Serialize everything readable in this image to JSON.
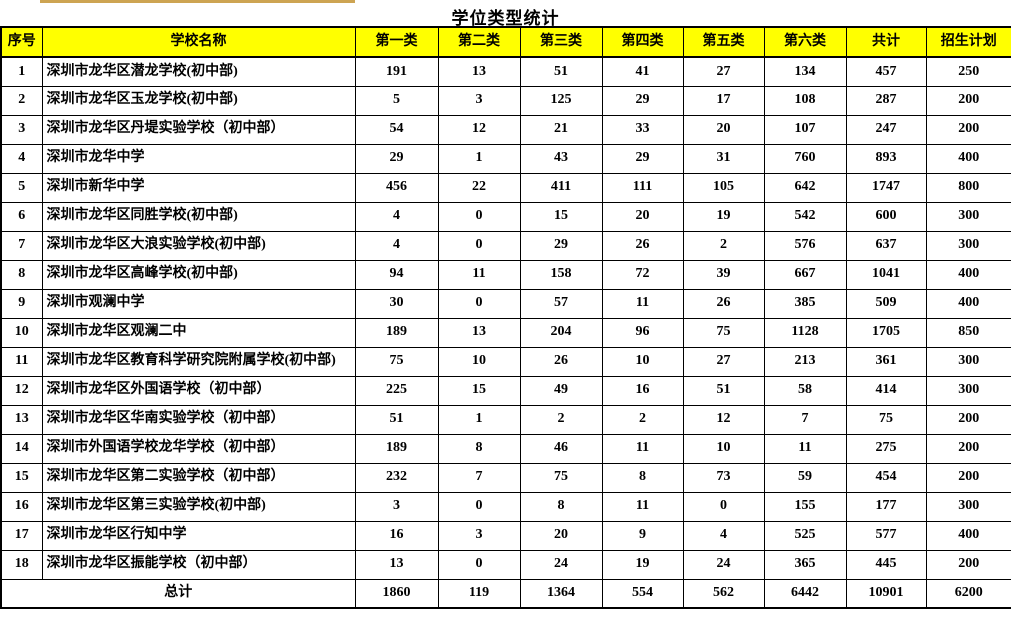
{
  "title": "学位类型统计",
  "colors": {
    "header_bg": "#FFFF00",
    "border": "#000000",
    "top_strip": "#CDA452",
    "text": "#000000",
    "background": "#FFFFFF"
  },
  "table": {
    "columns": [
      "序号",
      "学校名称",
      "第一类",
      "第二类",
      "第三类",
      "第四类",
      "第五类",
      "第六类",
      "共计",
      "招生计划"
    ],
    "rows": [
      {
        "no": "1",
        "school": "深圳市龙华区潜龙学校(初中部)",
        "values": [
          "191",
          "13",
          "51",
          "41",
          "27",
          "134",
          "457",
          "250"
        ]
      },
      {
        "no": "2",
        "school": "深圳市龙华区玉龙学校(初中部)",
        "values": [
          "5",
          "3",
          "125",
          "29",
          "17",
          "108",
          "287",
          "200"
        ]
      },
      {
        "no": "3",
        "school": "深圳市龙华区丹堤实验学校（初中部）",
        "values": [
          "54",
          "12",
          "21",
          "33",
          "20",
          "107",
          "247",
          "200"
        ]
      },
      {
        "no": "4",
        "school": "深圳市龙华中学",
        "values": [
          "29",
          "1",
          "43",
          "29",
          "31",
          "760",
          "893",
          "400"
        ]
      },
      {
        "no": "5",
        "school": "深圳市新华中学",
        "values": [
          "456",
          "22",
          "411",
          "111",
          "105",
          "642",
          "1747",
          "800"
        ]
      },
      {
        "no": "6",
        "school": "深圳市龙华区同胜学校(初中部)",
        "values": [
          "4",
          "0",
          "15",
          "20",
          "19",
          "542",
          "600",
          "300"
        ]
      },
      {
        "no": "7",
        "school": "深圳市龙华区大浪实验学校(初中部)",
        "values": [
          "4",
          "0",
          "29",
          "26",
          "2",
          "576",
          "637",
          "300"
        ]
      },
      {
        "no": "8",
        "school": "深圳市龙华区高峰学校(初中部)",
        "values": [
          "94",
          "11",
          "158",
          "72",
          "39",
          "667",
          "1041",
          "400"
        ]
      },
      {
        "no": "9",
        "school": "深圳市观澜中学",
        "values": [
          "30",
          "0",
          "57",
          "11",
          "26",
          "385",
          "509",
          "400"
        ]
      },
      {
        "no": "10",
        "school": "深圳市龙华区观澜二中",
        "values": [
          "189",
          "13",
          "204",
          "96",
          "75",
          "1128",
          "1705",
          "850"
        ]
      },
      {
        "no": "11",
        "school": "深圳市龙华区教育科学研究院附属学校(初中部)",
        "values": [
          "75",
          "10",
          "26",
          "10",
          "27",
          "213",
          "361",
          "300"
        ]
      },
      {
        "no": "12",
        "school": "深圳市龙华区外国语学校（初中部）",
        "values": [
          "225",
          "15",
          "49",
          "16",
          "51",
          "58",
          "414",
          "300"
        ]
      },
      {
        "no": "13",
        "school": "深圳市龙华区华南实验学校（初中部）",
        "values": [
          "51",
          "1",
          "2",
          "2",
          "12",
          "7",
          "75",
          "200"
        ]
      },
      {
        "no": "14",
        "school": "深圳市外国语学校龙华学校（初中部）",
        "values": [
          "189",
          "8",
          "46",
          "11",
          "10",
          "11",
          "275",
          "200"
        ]
      },
      {
        "no": "15",
        "school": "深圳市龙华区第二实验学校（初中部）",
        "values": [
          "232",
          "7",
          "75",
          "8",
          "73",
          "59",
          "454",
          "200"
        ]
      },
      {
        "no": "16",
        "school": "深圳市龙华区第三实验学校(初中部)",
        "values": [
          "3",
          "0",
          "8",
          "11",
          "0",
          "155",
          "177",
          "300"
        ]
      },
      {
        "no": "17",
        "school": "深圳市龙华区行知中学",
        "values": [
          "16",
          "3",
          "20",
          "9",
          "4",
          "525",
          "577",
          "400"
        ]
      },
      {
        "no": "18",
        "school": "深圳市龙华区振能学校（初中部）",
        "values": [
          "13",
          "0",
          "24",
          "19",
          "24",
          "365",
          "445",
          "200"
        ]
      }
    ],
    "total_label": "总计",
    "total_values": [
      "1860",
      "119",
      "1364",
      "554",
      "562",
      "6442",
      "10901",
      "6200"
    ]
  }
}
